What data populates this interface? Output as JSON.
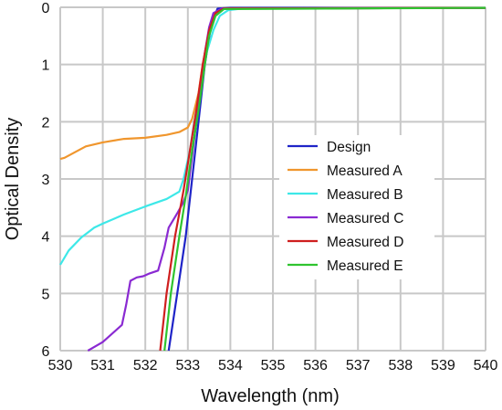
{
  "chart_data": {
    "type": "line",
    "title": "",
    "xlabel": "Wavelength (nm)",
    "ylabel": "Optical Density",
    "xlim": [
      530,
      540
    ],
    "ylim": [
      0,
      6
    ],
    "y_inverted": true,
    "grid": true,
    "legend_position": "center-right",
    "x_ticks": [
      "530",
      "531",
      "532",
      "533",
      "534",
      "535",
      "536",
      "537",
      "538",
      "539",
      "540"
    ],
    "y_ticks": [
      "0",
      "1",
      "2",
      "3",
      "4",
      "5",
      "6"
    ],
    "series": [
      {
        "name": "Design",
        "color": "#1f24c8",
        "points": [
          [
            532.55,
            6.0
          ],
          [
            532.75,
            5.0
          ],
          [
            532.95,
            4.0
          ],
          [
            533.1,
            3.0
          ],
          [
            533.25,
            2.0
          ],
          [
            533.4,
            1.0
          ],
          [
            533.55,
            0.3
          ],
          [
            533.7,
            0.02
          ],
          [
            534.0,
            0.01
          ],
          [
            540,
            0.01
          ]
        ]
      },
      {
        "name": "Measured A",
        "color": "#f0962d",
        "points": [
          [
            530.0,
            2.65
          ],
          [
            530.1,
            2.63
          ],
          [
            530.3,
            2.55
          ],
          [
            530.6,
            2.43
          ],
          [
            531.0,
            2.36
          ],
          [
            531.5,
            2.3
          ],
          [
            532.0,
            2.28
          ],
          [
            532.5,
            2.23
          ],
          [
            532.8,
            2.18
          ],
          [
            533.0,
            2.1
          ],
          [
            533.1,
            1.95
          ],
          [
            533.25,
            1.5
          ],
          [
            533.35,
            1.0
          ],
          [
            533.5,
            0.4
          ],
          [
            533.6,
            0.12
          ],
          [
            533.8,
            0.03
          ],
          [
            534.2,
            0.02
          ],
          [
            540,
            0.01
          ]
        ]
      },
      {
        "name": "Measured B",
        "color": "#3de8e8",
        "points": [
          [
            530.0,
            4.5
          ],
          [
            530.2,
            4.25
          ],
          [
            530.5,
            4.02
          ],
          [
            530.8,
            3.85
          ],
          [
            531.0,
            3.78
          ],
          [
            531.5,
            3.62
          ],
          [
            532.0,
            3.48
          ],
          [
            532.5,
            3.35
          ],
          [
            532.8,
            3.22
          ],
          [
            532.9,
            3.0
          ],
          [
            533.05,
            2.5
          ],
          [
            533.15,
            2.0
          ],
          [
            533.3,
            1.4
          ],
          [
            533.4,
            0.9
          ],
          [
            533.6,
            0.4
          ],
          [
            533.75,
            0.15
          ],
          [
            533.95,
            0.05
          ],
          [
            534.3,
            0.02
          ],
          [
            540,
            0.01
          ]
        ]
      },
      {
        "name": "Measured C",
        "color": "#8a2ad2",
        "points": [
          [
            530.65,
            6.0
          ],
          [
            531.0,
            5.85
          ],
          [
            531.45,
            5.55
          ],
          [
            531.55,
            5.2
          ],
          [
            531.65,
            4.78
          ],
          [
            531.8,
            4.72
          ],
          [
            531.95,
            4.7
          ],
          [
            532.1,
            4.65
          ],
          [
            532.3,
            4.6
          ],
          [
            532.45,
            4.2
          ],
          [
            532.55,
            3.85
          ],
          [
            532.75,
            3.6
          ],
          [
            532.9,
            3.4
          ],
          [
            533.0,
            3.2
          ],
          [
            533.1,
            2.6
          ],
          [
            533.2,
            2.0
          ],
          [
            533.3,
            1.4
          ],
          [
            533.4,
            0.8
          ],
          [
            533.5,
            0.35
          ],
          [
            533.6,
            0.1
          ],
          [
            533.8,
            0.02
          ],
          [
            540,
            0.01
          ]
        ]
      },
      {
        "name": "Measured D",
        "color": "#cf1f1f",
        "points": [
          [
            532.35,
            6.0
          ],
          [
            532.5,
            5.0
          ],
          [
            532.7,
            4.0
          ],
          [
            532.9,
            3.2
          ],
          [
            533.05,
            2.5
          ],
          [
            533.2,
            1.8
          ],
          [
            533.35,
            1.0
          ],
          [
            533.5,
            0.4
          ],
          [
            533.65,
            0.1
          ],
          [
            533.85,
            0.02
          ],
          [
            540,
            0.01
          ]
        ]
      },
      {
        "name": "Measured E",
        "color": "#2fc42f",
        "points": [
          [
            532.45,
            6.0
          ],
          [
            532.6,
            5.0
          ],
          [
            532.8,
            4.0
          ],
          [
            532.95,
            3.3
          ],
          [
            533.1,
            2.5
          ],
          [
            533.25,
            1.8
          ],
          [
            533.4,
            1.0
          ],
          [
            533.5,
            0.5
          ],
          [
            533.65,
            0.15
          ],
          [
            533.85,
            0.03
          ],
          [
            540,
            0.01
          ]
        ]
      }
    ]
  }
}
